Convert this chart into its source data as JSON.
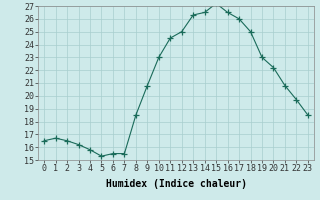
{
  "x": [
    0,
    1,
    2,
    3,
    4,
    5,
    6,
    7,
    8,
    9,
    10,
    11,
    12,
    13,
    14,
    15,
    16,
    17,
    18,
    19,
    20,
    21,
    22,
    23
  ],
  "y": [
    16.5,
    16.7,
    16.5,
    16.2,
    15.8,
    15.3,
    15.5,
    15.5,
    18.5,
    20.8,
    23.0,
    24.5,
    25.0,
    26.3,
    26.5,
    27.2,
    26.5,
    26.0,
    25.0,
    23.0,
    22.2,
    20.8,
    19.7,
    18.5
  ],
  "line_color": "#1a6b5a",
  "marker": "+",
  "marker_size": 4,
  "marker_color": "#1a6b5a",
  "bg_color": "#ceeaea",
  "grid_color": "#a8cece",
  "xlabel": "Humidex (Indice chaleur)",
  "ylim": [
    15,
    27
  ],
  "xlim": [
    -0.5,
    23.5
  ],
  "yticks": [
    15,
    16,
    17,
    18,
    19,
    20,
    21,
    22,
    23,
    24,
    25,
    26,
    27
  ],
  "xticks": [
    0,
    1,
    2,
    3,
    4,
    5,
    6,
    7,
    8,
    9,
    10,
    11,
    12,
    13,
    14,
    15,
    16,
    17,
    18,
    19,
    20,
    21,
    22,
    23
  ],
  "xtick_labels": [
    "0",
    "1",
    "2",
    "3",
    "4",
    "5",
    "6",
    "7",
    "8",
    "9",
    "10",
    "11",
    "12",
    "13",
    "14",
    "15",
    "16",
    "17",
    "18",
    "19",
    "20",
    "21",
    "22",
    "23"
  ],
  "font_size": 6,
  "xlabel_font_size": 7
}
